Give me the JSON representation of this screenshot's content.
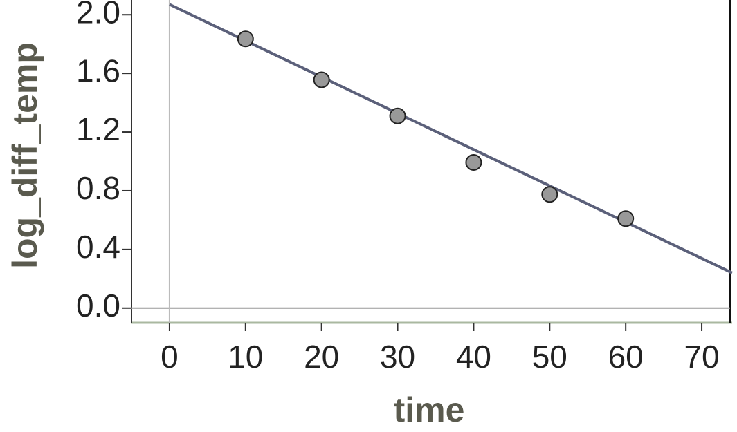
{
  "chart_data": {
    "type": "scatter",
    "x_label": "time",
    "y_label": "log_diff_temp",
    "points": {
      "color": "#999999",
      "x": [
        10,
        20,
        30,
        40,
        50,
        60
      ],
      "values": [
        1.835,
        1.556,
        1.31,
        0.993,
        0.775,
        0.61
      ]
    },
    "fit_line": {
      "color": "#5b607a",
      "x": [
        0,
        74
      ],
      "values": [
        2.07,
        0.24
      ]
    },
    "xlim": [
      -5,
      74
    ],
    "ylim": [
      -0.1,
      2.1
    ],
    "xticks": [
      0,
      10,
      20,
      30,
      40,
      50,
      60,
      70
    ],
    "yticks": [
      {
        "value": 0,
        "label": "0.0"
      },
      {
        "value": 0.4,
        "label": "0.4"
      },
      {
        "value": 0.8,
        "label": "0.8"
      },
      {
        "value": 1.2,
        "label": "1.2"
      },
      {
        "value": 1.6,
        "label": "1.6"
      },
      {
        "value": 2,
        "label": "2.0"
      }
    ]
  }
}
